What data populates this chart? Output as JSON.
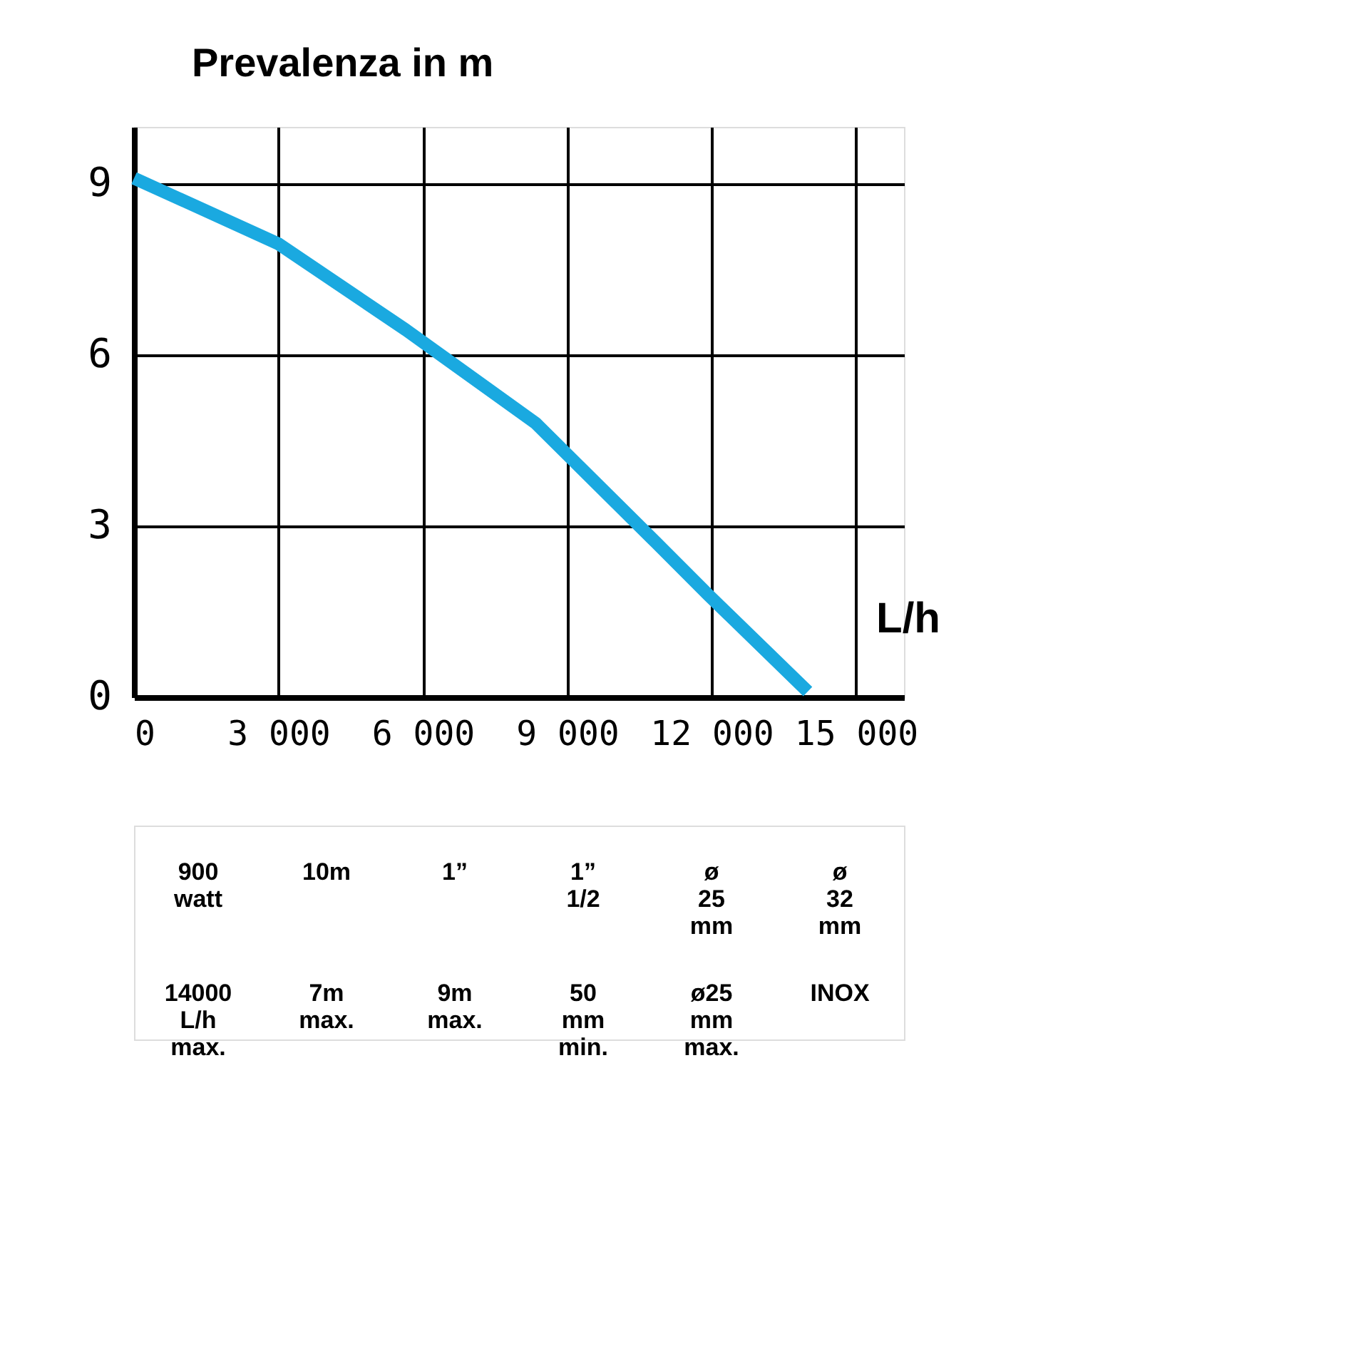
{
  "chart_data": {
    "type": "line",
    "ylabel": "Prevalenza in m",
    "xlabel": "L/h",
    "x": [
      0,
      3000,
      5650,
      8340,
      10850,
      11940,
      14000
    ],
    "series": [
      {
        "color": "#1aa9e0",
        "values": [
          9.1,
          7.95,
          6.44,
          4.81,
          2.71,
          1.79,
          0.1
        ]
      }
    ],
    "xlim": [
      0,
      16000
    ],
    "ylim": [
      0,
      10
    ],
    "xticks": [
      0,
      {
        "value": 3000,
        "label": "3 000"
      },
      {
        "value": 6000,
        "label": "6 000"
      },
      {
        "value": 9000,
        "label": "9 000"
      },
      {
        "value": 12000,
        "label": "12 000"
      },
      {
        "value": 15000,
        "label": "15 000"
      }
    ],
    "yticks": [
      0,
      3,
      6,
      9
    ],
    "grid": true,
    "marker": "none",
    "line_style": "solid",
    "annotations": [
      "900 watt",
      "10m",
      "1”",
      "1” 1/2",
      "ø 25 mm",
      "ø 32 mm",
      "14000 L/h max.",
      "7m max.",
      "9m max.",
      "50 mm min.",
      "ø25 mm max.",
      "INOX"
    ]
  }
}
